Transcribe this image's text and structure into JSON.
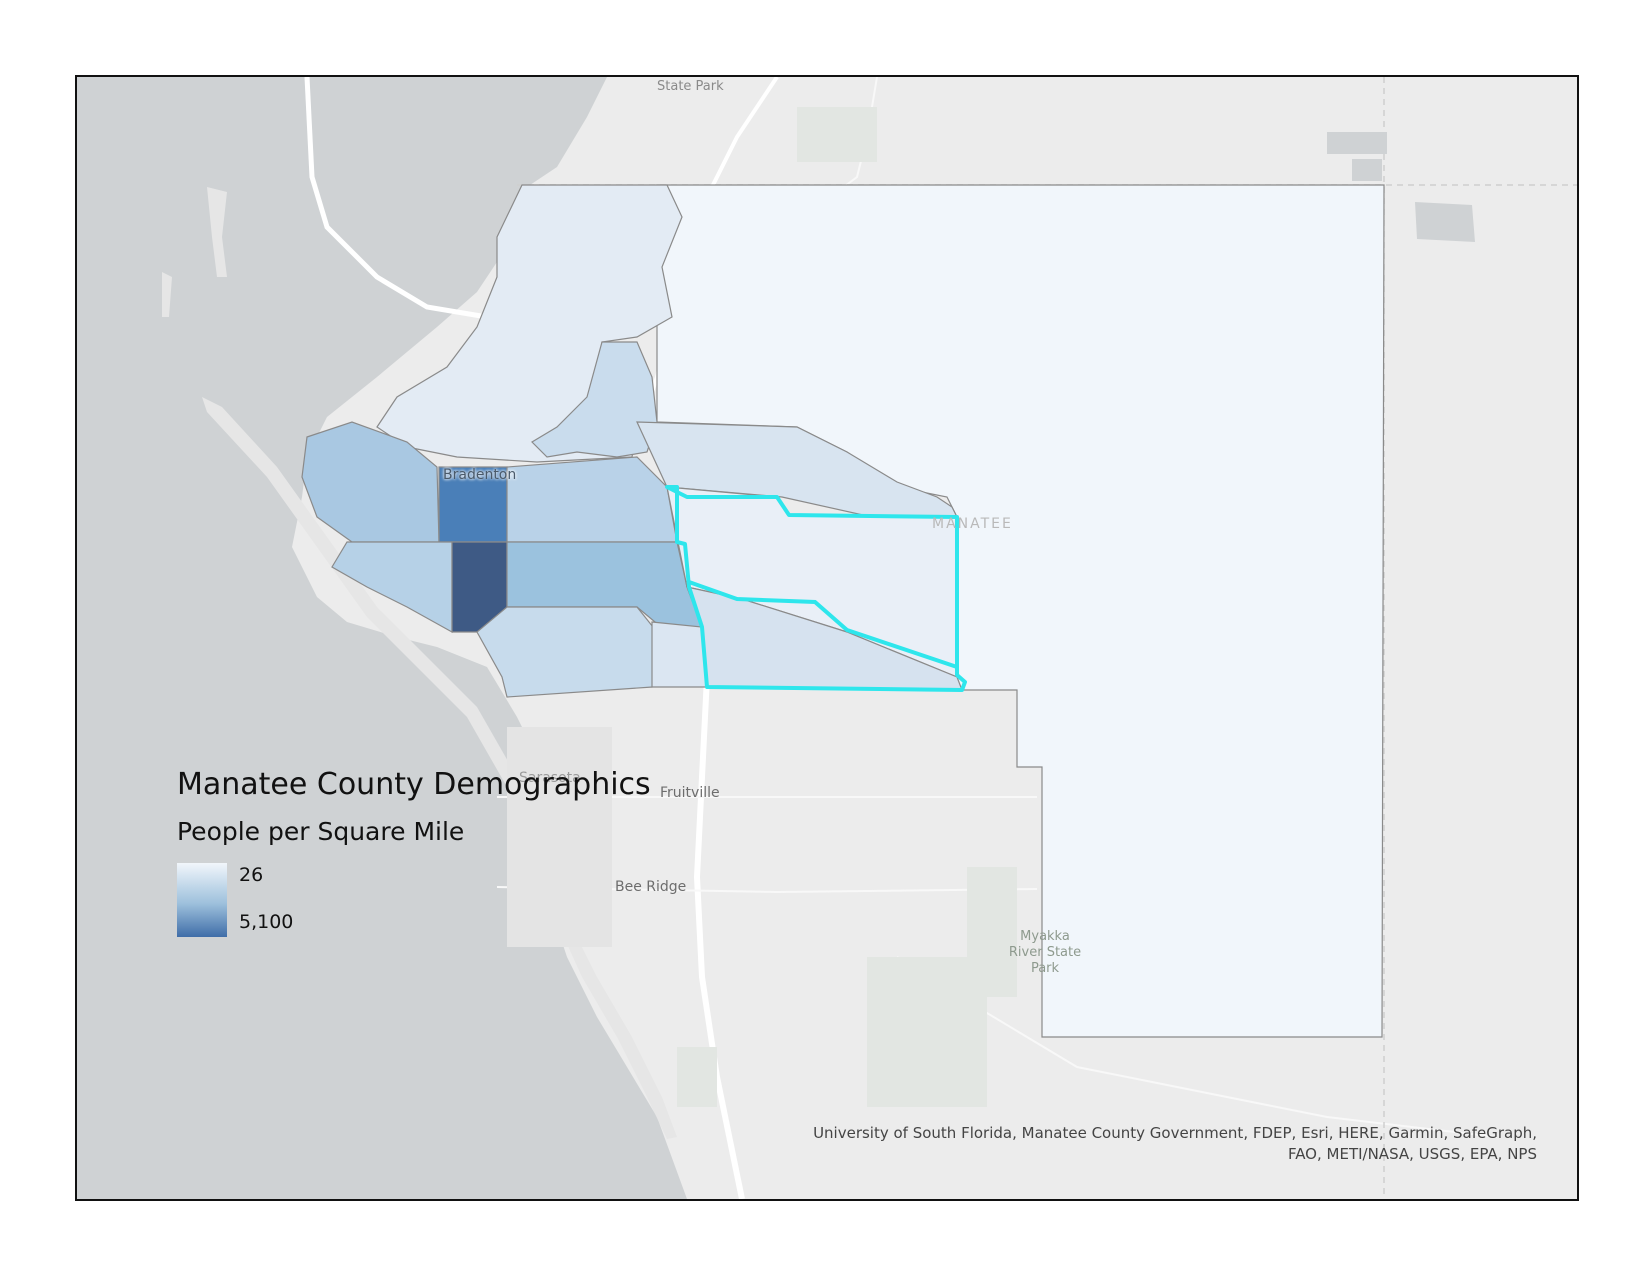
{
  "legend": {
    "title": "Manatee County Demographics",
    "subtitle": "People per Square Mile",
    "min_label": "26",
    "max_label": "5,100",
    "color_low": "#f1f6fb",
    "color_high": "#3f6da8"
  },
  "places": {
    "bradenton": "Bradenton",
    "sarasota": "Sarasota",
    "fruitville": "Fruitville",
    "bee_ridge": "Bee Ridge",
    "state_park": "State Park",
    "county": "MANATEE",
    "myakka_1": "Myakka",
    "myakka_2": "River State",
    "myakka_3": "Park"
  },
  "attribution": {
    "line1": "University of South Florida, Manatee County Government, FDEP, Esri, HERE, Garmin, SafeGraph,",
    "line2": "FAO, METI/NASA, USGS, EPA, NPS"
  },
  "colors": {
    "water": "#cfd2d4",
    "land": "#ececec",
    "highlight": "#2ee6ec",
    "boundary": "#8a8a8a"
  }
}
